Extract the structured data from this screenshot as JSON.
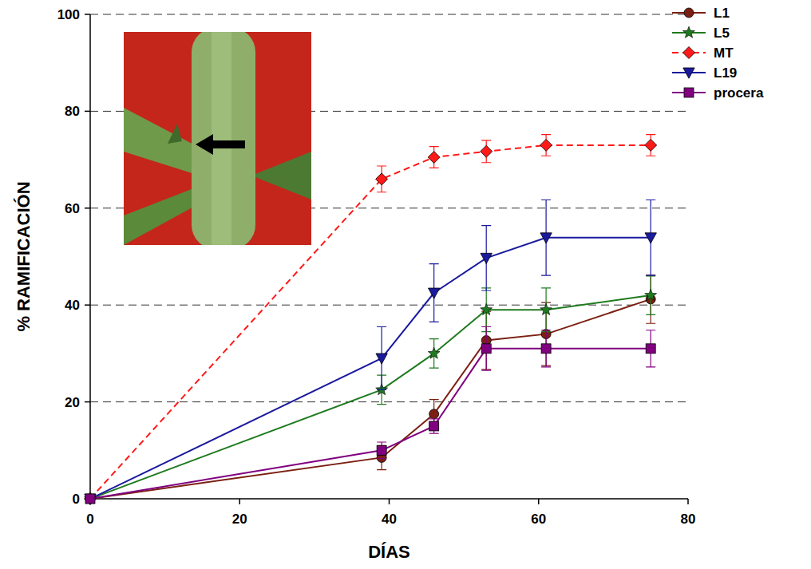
{
  "chart_data": {
    "type": "line",
    "x_label": "DÍAS",
    "y_label": "% RAMIFICACIÓN",
    "x": [
      0,
      39,
      46,
      53,
      61,
      75
    ],
    "xlim": [
      0,
      80
    ],
    "xticks": [
      0,
      20,
      40,
      60,
      80
    ],
    "ylim": [
      0,
      100
    ],
    "yticks": [
      0,
      20,
      40,
      60,
      80,
      100
    ],
    "grid": true,
    "legend": "top-right",
    "series": [
      {
        "name": "L1",
        "color": "#7b1f12",
        "marker": "circle",
        "line_style": "solid",
        "values": [
          0,
          8.5,
          17.5,
          32.7,
          34,
          41.2
        ],
        "errors": [
          0,
          2.5,
          3,
          6,
          6.5,
          5
        ]
      },
      {
        "name": "L5",
        "color": "#1f7a1f",
        "marker": "star",
        "line_style": "solid",
        "values": [
          0,
          22.5,
          30,
          39,
          39,
          42
        ],
        "errors": [
          0,
          3,
          3,
          4.5,
          4.5,
          4
        ]
      },
      {
        "name": "MT",
        "color": "#ff1a1a",
        "marker": "diamond",
        "line_style": "dashed",
        "values": [
          0,
          66,
          70.5,
          71.7,
          73,
          73
        ],
        "errors": [
          0,
          2.7,
          2.2,
          2.3,
          2.2,
          2.2
        ]
      },
      {
        "name": "L19",
        "color": "#1a1a9e",
        "marker": "triangle-down",
        "line_style": "solid",
        "values": [
          0,
          29,
          42.5,
          49.7,
          53.9,
          53.9
        ],
        "errors": [
          0,
          6.5,
          6,
          6.7,
          7.8,
          7.8
        ]
      },
      {
        "name": "procera",
        "color": "#800080",
        "marker": "square",
        "line_style": "solid",
        "values": [
          0,
          10,
          15,
          31,
          31,
          31
        ],
        "errors": [
          0,
          1.7,
          1.5,
          4.5,
          3.8,
          3.8
        ]
      }
    ]
  }
}
